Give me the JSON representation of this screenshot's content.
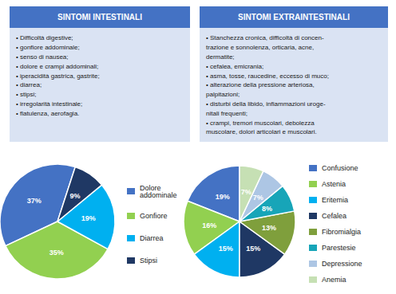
{
  "chart_data": [
    {
      "type": "text",
      "title": "SINTOMI INTESTINALI",
      "color": "#4472c4",
      "annotations": [
        "• Difficoltà digestive;",
        "• gonfiore addominale;",
        "• senso di nausea;",
        "• dolore e crampi addominali;",
        "• iperacidità gastrica, gastrite;",
        "• diarrea;",
        "• stipsi;",
        "• irregolarità intestinale;",
        "• flatulenza, aerofagia."
      ]
    },
    {
      "type": "text",
      "title": "SINTOMI EXTRAINTESTINALI",
      "color": "#4472c4",
      "annotations": [
        "• Stanchezza cronica, difficoltà di concen-",
        "trazione e sonnolenza, orticaria, acne,",
        "dermatite;",
        "• cefalea, emicrania;",
        "• asma, tosse, raucedine, eccesso di muco;",
        "• alterazione della pressione arteriosa,",
        "palpitazioni;",
        "• disturbi della libido, infiammazioni uroge-",
        "nitali frequenti;",
        "• crampi, tremori muscolari, debolezza",
        "muscolare, dolori articolari e muscolari."
      ]
    },
    {
      "type": "pie",
      "categories": [
        "Dolore\naddominale",
        "Gonfiore",
        "Diarrea",
        "Stipsi"
      ],
      "values": [
        37,
        35,
        19,
        9
      ],
      "value_labels": [
        "37%",
        "35%",
        "19%",
        "9%"
      ],
      "colors": [
        "#4472c4",
        "#92d050",
        "#00b0f0",
        "#1f3864"
      ],
      "data_labels": true,
      "legend": "right"
    },
    {
      "type": "pie",
      "categories": [
        "Confusione",
        "Astenia",
        "Eritemia",
        "Cefalea",
        "Fibromialgia",
        "Parestesie",
        "Depressione",
        "Anemia"
      ],
      "values": [
        19,
        16,
        15,
        15,
        13,
        8,
        7,
        7
      ],
      "value_labels": [
        "19%",
        "16%",
        "15%",
        "15%",
        "13%",
        "8%",
        "7%",
        "7%"
      ],
      "colors": [
        "#4472c4",
        "#92d050",
        "#00b0f0",
        "#1f3864",
        "#7f9f3c",
        "#17a5b8",
        "#adc6e4",
        "#c6e0b4"
      ],
      "data_labels": true,
      "legend": "right"
    }
  ]
}
